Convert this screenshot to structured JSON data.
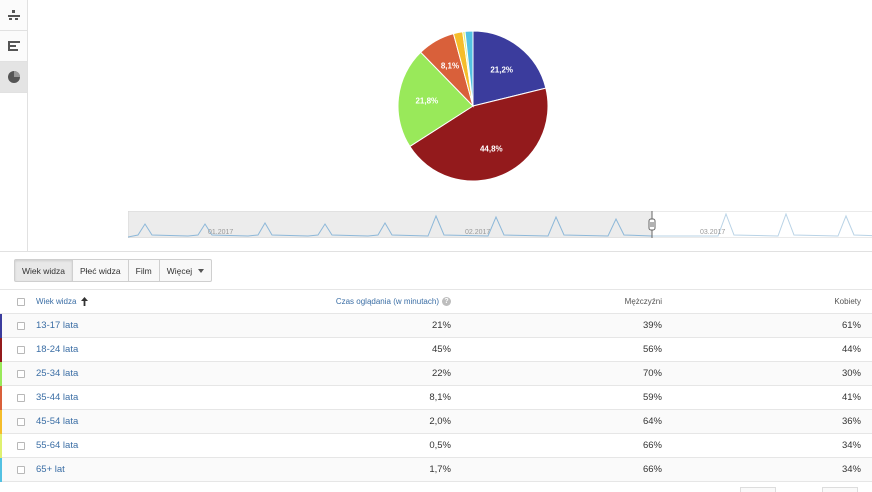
{
  "toolbar": {
    "icons": [
      "line-chart-icon",
      "bar-chart-icon",
      "pie-chart-icon"
    ],
    "active": "pie-chart-icon"
  },
  "chart_data": {
    "type": "pie",
    "start_angle_deg": 0,
    "slices": [
      {
        "name": "13-17 lata",
        "value": 21.2,
        "label": "21,2%",
        "color": "#3b3c9d"
      },
      {
        "name": "18-24 lata",
        "value": 44.8,
        "label": "44,8%",
        "color": "#931a1c"
      },
      {
        "name": "25-34 lata",
        "value": 21.8,
        "label": "21,8%",
        "color": "#99e95a"
      },
      {
        "name": "35-44 lata",
        "value": 8.1,
        "label": "8,1%",
        "color": "#d9603a"
      },
      {
        "name": "45-54 lata",
        "value": 2.0,
        "label": "",
        "color": "#f5bd2b"
      },
      {
        "name": "55-64 lata",
        "value": 0.5,
        "label": "",
        "color": "#dff170"
      },
      {
        "name": "65+ lat",
        "value": 1.7,
        "label": "",
        "color": "#53c1e2"
      }
    ]
  },
  "timeline": {
    "labels": [
      "01.2017",
      "02.2017",
      "03.2017"
    ]
  },
  "tabs": [
    {
      "label": "Wiek widza",
      "active": true
    },
    {
      "label": "Płeć widza",
      "active": false
    },
    {
      "label": "Film",
      "active": false
    },
    {
      "label": "Więcej",
      "active": false,
      "dropdown": true
    }
  ],
  "table": {
    "headers": {
      "name": "Wiek widza",
      "time": "Czas oglądania (w minutach)",
      "men": "Mężczyźni",
      "women": "Kobiety"
    },
    "rows": [
      {
        "name": "13-17 lata",
        "time": "21%",
        "men": "39%",
        "women": "61%",
        "color": "#3b3c9d"
      },
      {
        "name": "18-24 lata",
        "time": "45%",
        "men": "56%",
        "women": "44%",
        "color": "#931a1c"
      },
      {
        "name": "25-34 lata",
        "time": "22%",
        "men": "70%",
        "women": "30%",
        "color": "#99e95a"
      },
      {
        "name": "35-44 lata",
        "time": "8,1%",
        "men": "59%",
        "women": "41%",
        "color": "#d9603a"
      },
      {
        "name": "45-54 lata",
        "time": "2,0%",
        "men": "64%",
        "women": "36%",
        "color": "#f5bd2b"
      },
      {
        "name": "55-64 lata",
        "time": "0,5%",
        "men": "66%",
        "women": "34%",
        "color": "#dff170"
      },
      {
        "name": "65+ lat",
        "time": "1,7%",
        "men": "66%",
        "women": "34%",
        "color": "#53c1e2"
      }
    ]
  }
}
